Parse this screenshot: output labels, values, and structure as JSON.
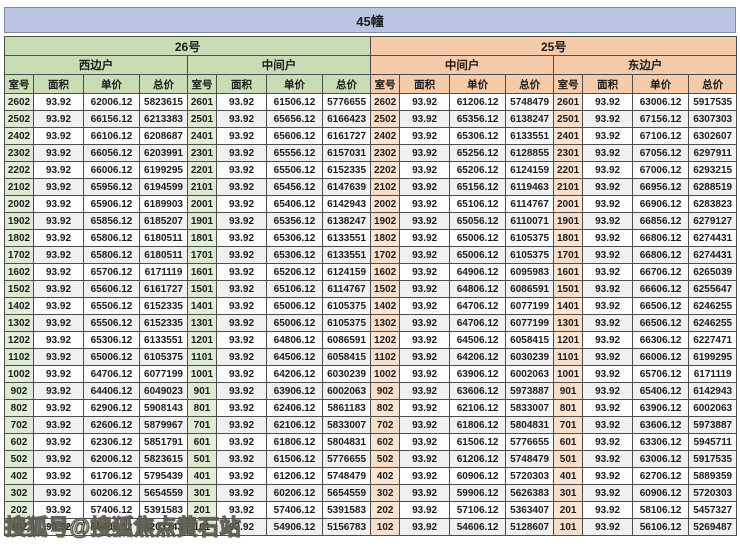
{
  "title": "45幢",
  "watermark": "搜狐号@搜狐焦点黄石站",
  "columns": [
    "室号",
    "面积",
    "单价",
    "总价"
  ],
  "buildings": [
    {
      "label": "26号",
      "positions": [
        "西边户",
        "中间户"
      ]
    },
    {
      "label": "25号",
      "positions": [
        "中间户",
        "东边户"
      ]
    }
  ],
  "colors": {
    "title_bar": "#b9c5e3",
    "green_header": "#c9ddb5",
    "green_room_cell": "#e3efd9",
    "orange_header": "#f6cba9",
    "orange_room_cell": "#fbe5d4",
    "border": "#4d4d4d",
    "alt_row": "#f0f0f0"
  },
  "groups": [
    {
      "building": "26号",
      "position": "西边户",
      "rows": [
        [
          "2602",
          "93.92",
          "62006.12",
          "5823615"
        ],
        [
          "2502",
          "93.92",
          "66156.12",
          "6213383"
        ],
        [
          "2402",
          "93.92",
          "66106.12",
          "6208687"
        ],
        [
          "2302",
          "93.92",
          "66056.12",
          "6203991"
        ],
        [
          "2202",
          "93.92",
          "66006.12",
          "6199295"
        ],
        [
          "2102",
          "93.92",
          "65956.12",
          "6194599"
        ],
        [
          "2002",
          "93.92",
          "65906.12",
          "6189903"
        ],
        [
          "1902",
          "93.92",
          "65856.12",
          "6185207"
        ],
        [
          "1802",
          "93.92",
          "65806.12",
          "6180511"
        ],
        [
          "1702",
          "93.92",
          "65806.12",
          "6180511"
        ],
        [
          "1602",
          "93.92",
          "65706.12",
          "6171119"
        ],
        [
          "1502",
          "93.92",
          "65606.12",
          "6161727"
        ],
        [
          "1402",
          "93.92",
          "65506.12",
          "6152335"
        ],
        [
          "1302",
          "93.92",
          "65506.12",
          "6152335"
        ],
        [
          "1202",
          "93.92",
          "65306.12",
          "6133551"
        ],
        [
          "1102",
          "93.92",
          "65006.12",
          "6105375"
        ],
        [
          "1002",
          "93.92",
          "64706.12",
          "6077199"
        ],
        [
          "902",
          "93.92",
          "64406.12",
          "6049023"
        ],
        [
          "802",
          "93.92",
          "62906.12",
          "5908143"
        ],
        [
          "702",
          "93.92",
          "62606.12",
          "5879967"
        ],
        [
          "602",
          "93.92",
          "62306.12",
          "5851791"
        ],
        [
          "502",
          "93.92",
          "62006.12",
          "5823615"
        ],
        [
          "402",
          "93.92",
          "61706.12",
          "5795439"
        ],
        [
          "302",
          "93.92",
          "60206.12",
          "5654559"
        ],
        [
          "202",
          "93.92",
          "57406.12",
          "5391583"
        ],
        [
          "102",
          "93.92",
          "55406.12",
          "5203743"
        ]
      ]
    },
    {
      "building": "26号",
      "position": "中间户",
      "rows": [
        [
          "2601",
          "93.92",
          "61506.12",
          "5776655"
        ],
        [
          "2501",
          "93.92",
          "65656.12",
          "6166423"
        ],
        [
          "2401",
          "93.92",
          "65606.12",
          "6161727"
        ],
        [
          "2301",
          "93.92",
          "65556.12",
          "6157031"
        ],
        [
          "2201",
          "93.92",
          "65506.12",
          "6152335"
        ],
        [
          "2101",
          "93.92",
          "65456.12",
          "6147639"
        ],
        [
          "2001",
          "93.92",
          "65406.12",
          "6142943"
        ],
        [
          "1901",
          "93.92",
          "65356.12",
          "6138247"
        ],
        [
          "1801",
          "93.92",
          "65306.12",
          "6133551"
        ],
        [
          "1701",
          "93.92",
          "65306.12",
          "6133551"
        ],
        [
          "1601",
          "93.92",
          "65206.12",
          "6124159"
        ],
        [
          "1501",
          "93.92",
          "65106.12",
          "6114767"
        ],
        [
          "1401",
          "93.92",
          "65006.12",
          "6105375"
        ],
        [
          "1301",
          "93.92",
          "65006.12",
          "6105375"
        ],
        [
          "1201",
          "93.92",
          "64806.12",
          "6086591"
        ],
        [
          "1101",
          "93.92",
          "64506.12",
          "6058415"
        ],
        [
          "1001",
          "93.92",
          "64206.12",
          "6030239"
        ],
        [
          "901",
          "93.92",
          "63906.12",
          "6002063"
        ],
        [
          "801",
          "93.92",
          "62406.12",
          "5861183"
        ],
        [
          "701",
          "93.92",
          "62106.12",
          "5833007"
        ],
        [
          "601",
          "93.92",
          "61806.12",
          "5804831"
        ],
        [
          "501",
          "93.92",
          "61506.12",
          "5776655"
        ],
        [
          "401",
          "93.92",
          "61206.12",
          "5748479"
        ],
        [
          "301",
          "93.92",
          "60206.12",
          "5654559"
        ],
        [
          "201",
          "93.92",
          "57406.12",
          "5391583"
        ],
        [
          "101",
          "93.92",
          "54906.12",
          "5156783"
        ]
      ]
    },
    {
      "building": "25号",
      "position": "中间户",
      "rows": [
        [
          "2602",
          "93.92",
          "61206.12",
          "5748479"
        ],
        [
          "2502",
          "93.92",
          "65356.12",
          "6138247"
        ],
        [
          "2402",
          "93.92",
          "65306.12",
          "6133551"
        ],
        [
          "2302",
          "93.92",
          "65256.12",
          "6128855"
        ],
        [
          "2202",
          "93.92",
          "65206.12",
          "6124159"
        ],
        [
          "2102",
          "93.92",
          "65156.12",
          "6119463"
        ],
        [
          "2002",
          "93.92",
          "65106.12",
          "6114767"
        ],
        [
          "1902",
          "93.92",
          "65056.12",
          "6110071"
        ],
        [
          "1802",
          "93.92",
          "65006.12",
          "6105375"
        ],
        [
          "1702",
          "93.92",
          "65006.12",
          "6105375"
        ],
        [
          "1602",
          "93.92",
          "64906.12",
          "6095983"
        ],
        [
          "1502",
          "93.92",
          "64806.12",
          "6086591"
        ],
        [
          "1402",
          "93.92",
          "64706.12",
          "6077199"
        ],
        [
          "1302",
          "93.92",
          "64706.12",
          "6077199"
        ],
        [
          "1202",
          "93.92",
          "64506.12",
          "6058415"
        ],
        [
          "1102",
          "93.92",
          "64206.12",
          "6030239"
        ],
        [
          "1002",
          "93.92",
          "63906.12",
          "6002063"
        ],
        [
          "902",
          "93.92",
          "63606.12",
          "5973887"
        ],
        [
          "802",
          "93.92",
          "62106.12",
          "5833007"
        ],
        [
          "702",
          "93.92",
          "61806.12",
          "5804831"
        ],
        [
          "602",
          "93.92",
          "61506.12",
          "5776655"
        ],
        [
          "502",
          "93.92",
          "61206.12",
          "5748479"
        ],
        [
          "402",
          "93.92",
          "60906.12",
          "5720303"
        ],
        [
          "302",
          "93.92",
          "59906.12",
          "5626383"
        ],
        [
          "202",
          "93.92",
          "57106.12",
          "5363407"
        ],
        [
          "102",
          "93.92",
          "54606.12",
          "5128607"
        ]
      ]
    },
    {
      "building": "25号",
      "position": "东边户",
      "rows": [
        [
          "2601",
          "93.92",
          "63006.12",
          "5917535"
        ],
        [
          "2501",
          "93.92",
          "67156.12",
          "6307303"
        ],
        [
          "2401",
          "93.92",
          "67106.12",
          "6302607"
        ],
        [
          "2301",
          "93.92",
          "67056.12",
          "6297911"
        ],
        [
          "2201",
          "93.92",
          "67006.12",
          "6293215"
        ],
        [
          "2101",
          "93.92",
          "66956.12",
          "6288519"
        ],
        [
          "2001",
          "93.92",
          "66906.12",
          "6283823"
        ],
        [
          "1901",
          "93.92",
          "66856.12",
          "6279127"
        ],
        [
          "1801",
          "93.92",
          "66806.12",
          "6274431"
        ],
        [
          "1701",
          "93.92",
          "66806.12",
          "6274431"
        ],
        [
          "1601",
          "93.92",
          "66706.12",
          "6265039"
        ],
        [
          "1501",
          "93.92",
          "66606.12",
          "6255647"
        ],
        [
          "1401",
          "93.92",
          "66506.12",
          "6246255"
        ],
        [
          "1301",
          "93.92",
          "66506.12",
          "6246255"
        ],
        [
          "1201",
          "93.92",
          "66306.12",
          "6227471"
        ],
        [
          "1101",
          "93.92",
          "66006.12",
          "6199295"
        ],
        [
          "1001",
          "93.92",
          "65706.12",
          "6171119"
        ],
        [
          "901",
          "93.92",
          "65406.12",
          "6142943"
        ],
        [
          "801",
          "93.92",
          "63906.12",
          "6002063"
        ],
        [
          "701",
          "93.92",
          "63606.12",
          "5973887"
        ],
        [
          "601",
          "93.92",
          "63306.12",
          "5945711"
        ],
        [
          "501",
          "93.92",
          "63006.12",
          "5917535"
        ],
        [
          "401",
          "93.92",
          "62706.12",
          "5889359"
        ],
        [
          "301",
          "93.92",
          "60906.12",
          "5720303"
        ],
        [
          "201",
          "93.92",
          "58106.12",
          "5457327"
        ],
        [
          "101",
          "93.92",
          "56106.12",
          "5269487"
        ]
      ]
    }
  ]
}
